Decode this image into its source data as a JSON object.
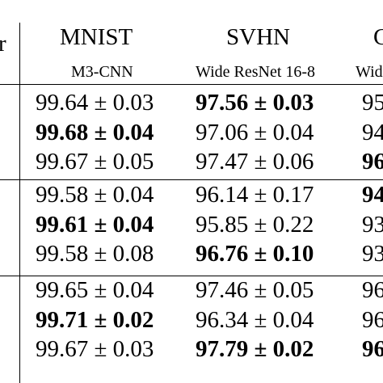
{
  "header": {
    "left_fragment": "r",
    "datasets": [
      {
        "name": "MNIST",
        "model": "M3-CNN"
      },
      {
        "name": "SVHN",
        "model": "Wide ResNet 16-8"
      },
      {
        "name": "C",
        "model": "Wid"
      }
    ]
  },
  "rows": [
    {
      "mnist": "99.64 ± 0.03",
      "svhn": "97.56 ± 0.03",
      "third": "95",
      "bold": [
        false,
        true,
        false
      ]
    },
    {
      "mnist": "99.68 ± 0.04",
      "svhn": "97.06 ± 0.04",
      "third": "94",
      "bold": [
        true,
        false,
        false
      ]
    },
    {
      "mnist": "99.67 ± 0.05",
      "svhn": "97.47 ± 0.06",
      "third": "96",
      "bold": [
        false,
        false,
        true
      ]
    },
    {
      "mnist": "99.58 ± 0.04",
      "svhn": "96.14 ± 0.17",
      "third": "94",
      "bold": [
        false,
        false,
        true
      ]
    },
    {
      "mnist": "99.61 ± 0.04",
      "svhn": "95.85 ± 0.22",
      "third": "93",
      "bold": [
        true,
        false,
        false
      ]
    },
    {
      "mnist": "99.58 ± 0.08",
      "svhn": "96.76 ± 0.10",
      "third": "93",
      "bold": [
        false,
        true,
        false
      ]
    },
    {
      "mnist": "99.65 ± 0.04",
      "svhn": "97.46 ± 0.05",
      "third": "96",
      "bold": [
        false,
        false,
        false
      ]
    },
    {
      "mnist": "99.71 ± 0.02",
      "svhn": "96.34 ± 0.04",
      "third": "96",
      "bold": [
        true,
        false,
        false
      ]
    },
    {
      "mnist": "99.67 ± 0.03",
      "svhn": "97.79 ± 0.02",
      "third": "96",
      "bold": [
        false,
        true,
        true
      ]
    }
  ]
}
